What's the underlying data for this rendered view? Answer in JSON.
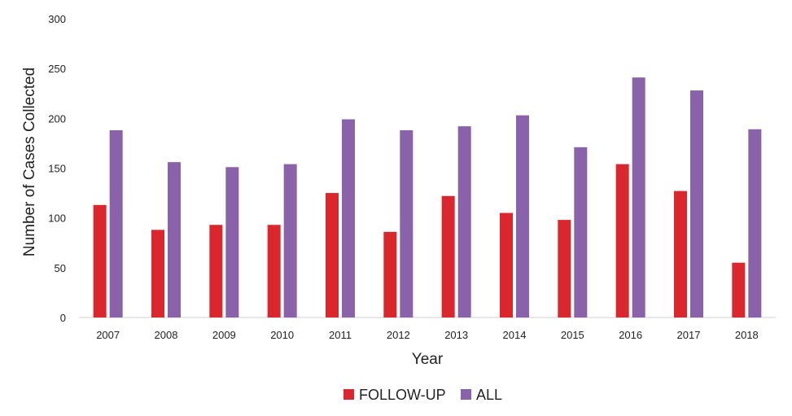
{
  "chart_data": {
    "type": "bar",
    "title": "",
    "xlabel": "Year",
    "ylabel": "Number of Cases Collected",
    "categories": [
      "2007",
      "2008",
      "2009",
      "2010",
      "2011",
      "2012",
      "2013",
      "2014",
      "2015",
      "2016",
      "2017",
      "2018"
    ],
    "series": [
      {
        "name": "FOLLOW-UP",
        "color": "#d9272d",
        "values": [
          113,
          88,
          93,
          93,
          125,
          86,
          122,
          105,
          98,
          154,
          127,
          55
        ]
      },
      {
        "name": "ALL",
        "color": "#8a62aa",
        "values": [
          188,
          156,
          151,
          154,
          199,
          188,
          192,
          203,
          171,
          241,
          228,
          189
        ]
      }
    ],
    "ylim": [
      0,
      300
    ],
    "yticks": [
      0,
      50,
      100,
      150,
      200,
      250,
      300
    ],
    "grid": false,
    "legend": "bottom"
  }
}
